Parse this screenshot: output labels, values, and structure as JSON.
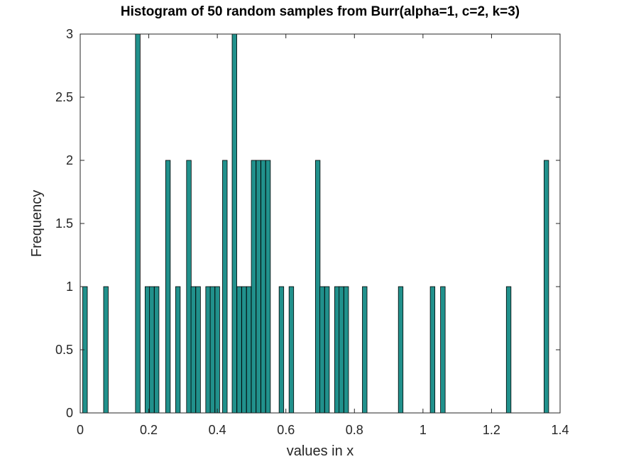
{
  "chart_data": {
    "type": "bar",
    "title": "Histogram of 50 random samples from Burr(alpha=1, c=2, k=3)",
    "xlabel": "values in x",
    "ylabel": "Frequency",
    "xlim": [
      0,
      1.4
    ],
    "ylim": [
      0,
      3
    ],
    "xticks": [
      "0",
      "0.2",
      "0.4",
      "0.6",
      "0.8",
      "1",
      "1.2",
      "1.4"
    ],
    "yticks": [
      "0",
      "0.5",
      "1",
      "1.5",
      "2",
      "2.5",
      "3"
    ],
    "bar_width": 0.0135,
    "bar_color": "#21918c",
    "bar_edge_color": "#000000",
    "grid": false,
    "bins": [
      {
        "x": 0.014,
        "count": 1
      },
      {
        "x": 0.075,
        "count": 1
      },
      {
        "x": 0.168,
        "count": 3
      },
      {
        "x": 0.196,
        "count": 1
      },
      {
        "x": 0.209,
        "count": 1
      },
      {
        "x": 0.223,
        "count": 1
      },
      {
        "x": 0.256,
        "count": 2
      },
      {
        "x": 0.285,
        "count": 1
      },
      {
        "x": 0.317,
        "count": 2
      },
      {
        "x": 0.33,
        "count": 1
      },
      {
        "x": 0.344,
        "count": 1
      },
      {
        "x": 0.373,
        "count": 1
      },
      {
        "x": 0.386,
        "count": 1
      },
      {
        "x": 0.4,
        "count": 1
      },
      {
        "x": 0.422,
        "count": 2
      },
      {
        "x": 0.45,
        "count": 3
      },
      {
        "x": 0.464,
        "count": 1
      },
      {
        "x": 0.478,
        "count": 1
      },
      {
        "x": 0.492,
        "count": 1
      },
      {
        "x": 0.506,
        "count": 2
      },
      {
        "x": 0.52,
        "count": 2
      },
      {
        "x": 0.534,
        "count": 2
      },
      {
        "x": 0.548,
        "count": 2
      },
      {
        "x": 0.587,
        "count": 1
      },
      {
        "x": 0.616,
        "count": 1
      },
      {
        "x": 0.693,
        "count": 2
      },
      {
        "x": 0.706,
        "count": 1
      },
      {
        "x": 0.72,
        "count": 1
      },
      {
        "x": 0.749,
        "count": 1
      },
      {
        "x": 0.762,
        "count": 1
      },
      {
        "x": 0.776,
        "count": 1
      },
      {
        "x": 0.83,
        "count": 1
      },
      {
        "x": 0.935,
        "count": 1
      },
      {
        "x": 1.028,
        "count": 1
      },
      {
        "x": 1.058,
        "count": 1
      },
      {
        "x": 1.25,
        "count": 1
      },
      {
        "x": 1.36,
        "count": 2
      }
    ]
  }
}
